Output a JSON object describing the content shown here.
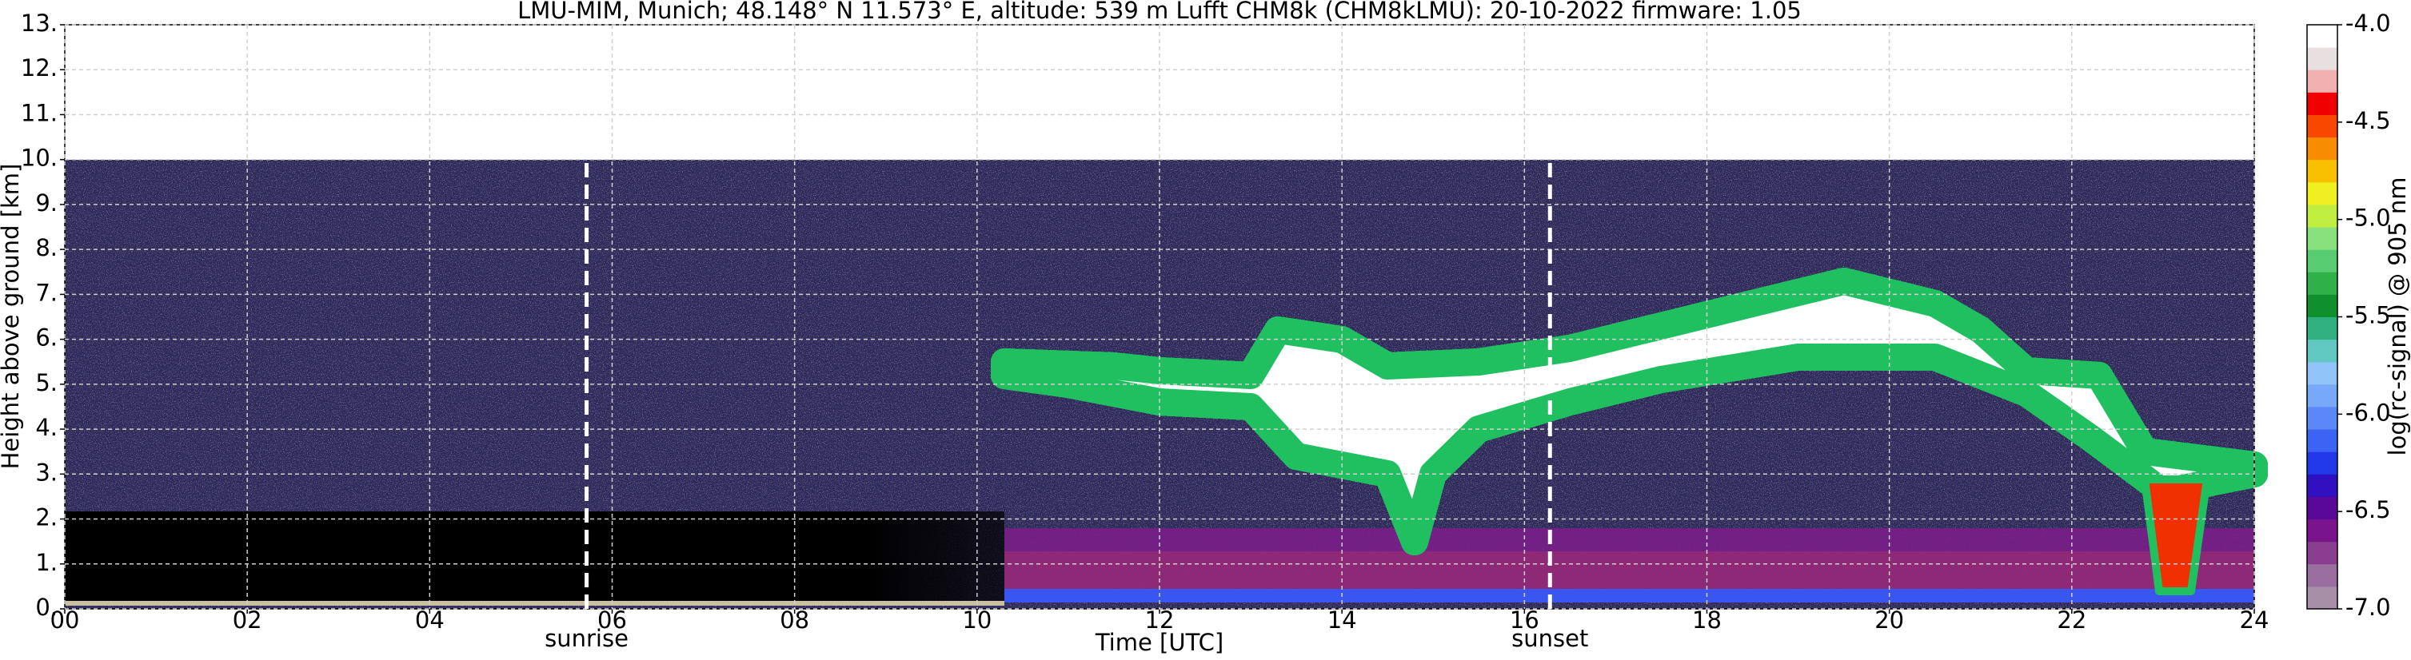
{
  "chart_data": {
    "type": "heatmap",
    "title": "LMU-MIM, Munich; 48.148° N 11.573° E, altitude: 539 m    Lufft CHM8k (CHM8kLMU): 20-10-2022    firmware: 1.05",
    "xlabel": "Time [UTC]",
    "ylabel": "Height above ground [km]",
    "xlim": [
      0,
      24
    ],
    "ylim": [
      0,
      13
    ],
    "xticks": [
      {
        "value": 0,
        "label": "00"
      },
      {
        "value": 2,
        "label": "02"
      },
      {
        "value": 4,
        "label": "04"
      },
      {
        "value": 6,
        "label": "06"
      },
      {
        "value": 8,
        "label": "08"
      },
      10,
      12,
      14,
      16,
      18,
      20,
      22,
      24
    ],
    "yticks": [
      {
        "value": 0,
        "label": "0."
      },
      {
        "value": 1,
        "label": "1."
      },
      {
        "value": 2,
        "label": "2."
      },
      {
        "value": 3,
        "label": "3."
      },
      {
        "value": 4,
        "label": "4."
      },
      {
        "value": 5,
        "label": "5."
      },
      {
        "value": 6,
        "label": "6."
      },
      {
        "value": 7,
        "label": "7."
      },
      {
        "value": 8,
        "label": "8."
      },
      {
        "value": 9,
        "label": "9."
      },
      {
        "value": 10,
        "label": "10."
      },
      {
        "value": 11,
        "label": "11."
      },
      {
        "value": 12,
        "label": "12."
      },
      {
        "value": 13,
        "label": "13."
      }
    ],
    "grid": true,
    "annotations": [
      {
        "text": "sunrise",
        "x": 5.72
      },
      {
        "text": "sunset",
        "x": 16.28
      }
    ],
    "colorbar": {
      "label": "log(rc-signal) @ 905 nm",
      "clim": [
        -7,
        -4
      ],
      "ticks": [
        {
          "value": -7,
          "label": "-7.0"
        },
        -6.5,
        {
          "value": -6,
          "label": "-6.0"
        },
        -5.5,
        {
          "value": -5,
          "label": "-5.0"
        },
        -4.5,
        {
          "value": -4,
          "label": "-4.0"
        }
      ],
      "colors": [
        "#a88fa8",
        "#9a6fa0",
        "#8a3e90",
        "#7a148c",
        "#5a0898",
        "#3010c0",
        "#2038e8",
        "#3c64f4",
        "#5a88f6",
        "#78a8f8",
        "#90c4f8",
        "#60c8c0",
        "#30b080",
        "#10902c",
        "#30b048",
        "#58cc70",
        "#88e07c",
        "#c0ee40",
        "#f0f020",
        "#f8c000",
        "#f88c00",
        "#f84800",
        "#f00000",
        "#f0b0b0",
        "#e8e0e0",
        "#ffffff"
      ]
    }
  }
}
